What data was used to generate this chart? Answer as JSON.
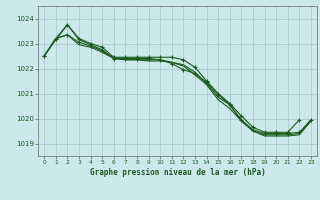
{
  "title": "Graphe pression niveau de la mer (hPa)",
  "bg_color": "#cce8ed",
  "grid_color": "#aacccc",
  "line_color": "#1a5c1a",
  "text_color": "#1a5c1a",
  "xlim": [
    -0.5,
    23.5
  ],
  "ylim": [
    1018.5,
    1024.5
  ],
  "yticks": [
    1019,
    1020,
    1021,
    1022,
    1023,
    1024
  ],
  "xticks": [
    0,
    1,
    2,
    3,
    4,
    5,
    6,
    7,
    8,
    9,
    10,
    11,
    12,
    13,
    14,
    15,
    16,
    17,
    18,
    19,
    20,
    21,
    22,
    23
  ],
  "series": [
    {
      "x": [
        0,
        1,
        2,
        3,
        4,
        5,
        6,
        7,
        8,
        9,
        10,
        11,
        12,
        13,
        14,
        15,
        16,
        17,
        18,
        19,
        20,
        21,
        22
      ],
      "y": [
        1022.5,
        1023.2,
        1023.75,
        1023.2,
        1023.0,
        1022.85,
        1022.45,
        1022.45,
        1022.45,
        1022.45,
        1022.45,
        1022.45,
        1022.35,
        1022.05,
        1021.5,
        1021.0,
        1020.6,
        1020.1,
        1019.65,
        1019.45,
        1019.45,
        1019.45,
        1019.95
      ],
      "marker": true
    },
    {
      "x": [
        0,
        1,
        2,
        3,
        4,
        5,
        6,
        7,
        8,
        9,
        10,
        11,
        12,
        13,
        14,
        15,
        16,
        17,
        18,
        19,
        20,
        21,
        22,
        23
      ],
      "y": [
        1022.5,
        1023.2,
        1023.35,
        1023.05,
        1022.9,
        1022.7,
        1022.4,
        1022.4,
        1022.4,
        1022.4,
        1022.35,
        1022.2,
        1021.95,
        1021.8,
        1021.45,
        1020.95,
        1020.55,
        1019.95,
        1019.55,
        1019.4,
        1019.4,
        1019.4,
        1019.45,
        1019.95
      ],
      "marker": true
    },
    {
      "x": [
        0,
        1,
        2,
        3,
        4,
        5,
        6,
        7,
        8,
        9,
        10,
        11,
        12,
        13,
        14,
        15,
        16,
        17,
        18,
        19,
        20,
        21,
        22,
        23
      ],
      "y": [
        1022.5,
        1023.2,
        1023.35,
        1022.95,
        1022.85,
        1022.65,
        1022.4,
        1022.35,
        1022.35,
        1022.35,
        1022.35,
        1022.25,
        1022.15,
        1021.85,
        1021.4,
        1020.85,
        1020.55,
        1019.9,
        1019.5,
        1019.35,
        1019.35,
        1019.35,
        1019.4,
        1019.9
      ],
      "marker": false
    },
    {
      "x": [
        0,
        1,
        2,
        3,
        4,
        5,
        6,
        7,
        8,
        9,
        10,
        11,
        12,
        13,
        14,
        15,
        16,
        17,
        18,
        19,
        20,
        21,
        22,
        23
      ],
      "y": [
        1022.5,
        1023.15,
        1023.75,
        1023.15,
        1022.95,
        1022.75,
        1022.4,
        1022.35,
        1022.35,
        1022.3,
        1022.3,
        1022.25,
        1022.1,
        1021.75,
        1021.35,
        1020.75,
        1020.4,
        1019.9,
        1019.5,
        1019.3,
        1019.3,
        1019.3,
        1019.35,
        1019.9
      ],
      "marker": false
    }
  ]
}
